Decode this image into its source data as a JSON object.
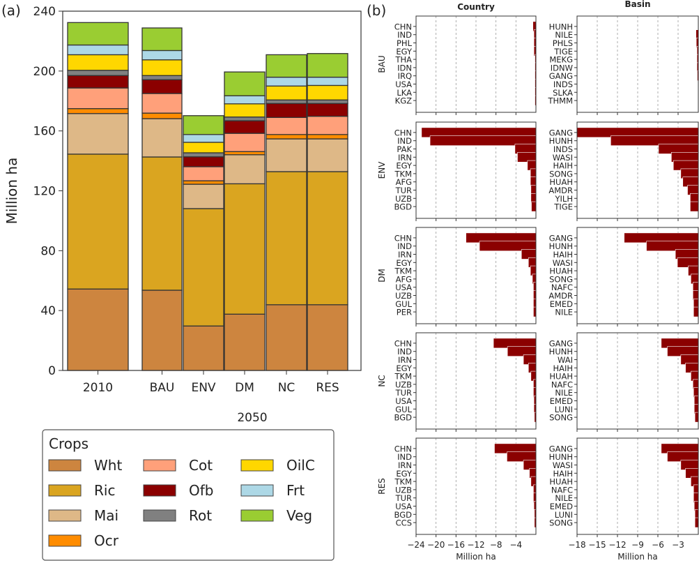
{
  "panel_labels": {
    "a": "(a)",
    "b": "(b)"
  },
  "chart_data": [
    {
      "type": "bar",
      "stacked": true,
      "id": "panel-a",
      "title": "",
      "xlabel": "2050",
      "ylabel": "Million ha",
      "ylim": [
        0,
        240
      ],
      "yticks": [
        0,
        40,
        80,
        120,
        160,
        200,
        240
      ],
      "categories": [
        "2010",
        "BAU",
        "ENV",
        "DM",
        "NC",
        "RES"
      ],
      "group_gap_after": "2010",
      "series": [
        {
          "name": "Wht",
          "color": "#CD853F",
          "values": [
            54.4,
            53.6,
            29.7,
            37.6,
            43.9,
            43.9
          ]
        },
        {
          "name": "Ric",
          "color": "#DAA520",
          "values": [
            90.1,
            89.0,
            78.4,
            87.1,
            88.9,
            88.9
          ]
        },
        {
          "name": "Mai",
          "color": "#DEB887",
          "values": [
            27.1,
            25.6,
            16.3,
            19.4,
            21.9,
            21.9
          ]
        },
        {
          "name": "Ocr",
          "color": "#FF8C00",
          "values": [
            3.3,
            3.7,
            2.3,
            2.1,
            2.9,
            2.9
          ]
        },
        {
          "name": "Cot",
          "color": "#FFA07A",
          "values": [
            13.8,
            13.1,
            9.4,
            12.2,
            11.4,
            12.2
          ]
        },
        {
          "name": "Ofb",
          "color": "#8B0000",
          "values": [
            8.3,
            9.2,
            6.6,
            8.4,
            9.3,
            8.5
          ]
        },
        {
          "name": "Rot",
          "color": "#808080",
          "values": [
            3.5,
            2.8,
            2.7,
            2.5,
            2.4,
            2.4
          ]
        },
        {
          "name": "OilC",
          "color": "#FFD700",
          "values": [
            10.4,
            10.5,
            7.0,
            8.8,
            9.3,
            9.7
          ]
        },
        {
          "name": "Frt",
          "color": "#ADD8E6",
          "values": [
            6.5,
            6.2,
            5.2,
            5.4,
            5.9,
            5.5
          ]
        },
        {
          "name": "Veg",
          "color": "#9ACD32",
          "values": [
            15.0,
            15.1,
            12.6,
            15.9,
            15.0,
            15.8
          ]
        }
      ],
      "legend": {
        "title": "Crops",
        "placement": "bottom",
        "columns": 3
      }
    },
    {
      "type": "bar",
      "orientation": "horizontal",
      "id": "panel-b",
      "bar_color": "#8B0000",
      "column_titles": [
        "Country",
        "Basin"
      ],
      "row_labels": [
        "BAU",
        "ENV",
        "DM",
        "NC",
        "RES"
      ],
      "xlabel": "Million ha",
      "axes": {
        "Country": {
          "xlim": [
            -24,
            0
          ],
          "xticks": [
            -24,
            -20,
            -16,
            -12,
            -8,
            -4
          ]
        },
        "Basin": {
          "xlim": [
            -18,
            0
          ],
          "xticks": [
            -18,
            -15,
            -12,
            -9,
            -6,
            -3
          ]
        }
      },
      "panels": [
        {
          "scenario": "BAU",
          "group": "Country",
          "labels": [
            "CHN",
            "IND",
            "PHL",
            "EGY",
            "THA",
            "IDN",
            "IRQ",
            "USA",
            "LKA",
            "KGZ"
          ],
          "values": [
            -0.6,
            -0.4,
            -0.4,
            -0.4,
            -0.2,
            -0.2,
            -0.2,
            -0.2,
            -0.2,
            -0.2
          ]
        },
        {
          "scenario": "BAU",
          "group": "Basin",
          "labels": [
            "HUNH",
            "NILE",
            "PHLS",
            "TIGE",
            "MEKG",
            "IDNW",
            "GANG",
            "INDS",
            "SLKA",
            "THMM"
          ],
          "values": [
            0,
            -0.35,
            -0.3,
            -0.2,
            -0.2,
            -0.2,
            -0.15,
            0,
            0,
            0
          ]
        },
        {
          "scenario": "ENV",
          "group": "Country",
          "labels": [
            "CHN",
            "IND",
            "PAK",
            "IRN",
            "EGY",
            "TKM",
            "AFG",
            "TUR",
            "UZB",
            "BGD"
          ],
          "values": [
            -22.9,
            -21.2,
            -4.2,
            -3.7,
            -1.7,
            -1.1,
            -1.1,
            -1.0,
            -1.0,
            -0.9
          ]
        },
        {
          "scenario": "ENV",
          "group": "Basin",
          "labels": [
            "GANG",
            "HUNH",
            "INDS",
            "WASI",
            "HAIH",
            "SONG",
            "HUAH",
            "AMDR",
            "YILH",
            "TIGE"
          ],
          "values": [
            -18.0,
            -13.0,
            -5.9,
            -4.0,
            -3.7,
            -2.6,
            -2.3,
            -1.6,
            -1.2,
            -1.2
          ]
        },
        {
          "scenario": "DM",
          "group": "Country",
          "labels": [
            "CHN",
            "IND",
            "IRN",
            "EGY",
            "TKM",
            "AFG",
            "USA",
            "UZB",
            "GUL",
            "PER"
          ],
          "values": [
            -14.0,
            -11.3,
            -2.9,
            -1.5,
            -1.1,
            -0.7,
            -0.5,
            -0.5,
            -0.5,
            -0.5
          ]
        },
        {
          "scenario": "DM",
          "group": "Basin",
          "labels": [
            "GANG",
            "HUNH",
            "HAIH",
            "WASI",
            "HUAH",
            "SONG",
            "NAFC",
            "AMDR",
            "EMED",
            "NILE"
          ],
          "values": [
            -11.0,
            -7.7,
            -3.4,
            -3.1,
            -1.5,
            -1.1,
            -0.8,
            -0.8,
            -0.7,
            -0.7
          ]
        },
        {
          "scenario": "NC",
          "group": "Country",
          "labels": [
            "CHN",
            "IND",
            "IRN",
            "EGY",
            "TKM",
            "UZB",
            "TUR",
            "USA",
            "GUL",
            "BGD"
          ],
          "values": [
            -8.5,
            -5.7,
            -2.5,
            -1.5,
            -1.0,
            -0.5,
            -0.5,
            -0.4,
            -0.4,
            -0.3
          ]
        },
        {
          "scenario": "NC",
          "group": "Basin",
          "labels": [
            "GANG",
            "HUNH",
            "WAI",
            "HAIH",
            "HUAH",
            "NAFC",
            "NILE",
            "EMED",
            "LUNI",
            "SONG"
          ],
          "values": [
            -5.5,
            -4.6,
            -2.6,
            -1.9,
            -1.1,
            -0.8,
            -0.7,
            -0.6,
            -0.6,
            -0.5
          ]
        },
        {
          "scenario": "RES",
          "group": "Country",
          "labels": [
            "CHN",
            "IND",
            "IRN",
            "EGY",
            "TKM",
            "UZB",
            "TUR",
            "USA",
            "BGD",
            "CCS"
          ],
          "values": [
            -8.3,
            -5.8,
            -2.5,
            -1.3,
            -1.0,
            -0.5,
            -0.5,
            -0.4,
            -0.3,
            -0.3
          ]
        },
        {
          "scenario": "RES",
          "group": "Basin",
          "labels": [
            "GANG",
            "HUNH",
            "WASI",
            "HAIH",
            "HUAH",
            "NAFC",
            "NILE",
            "EMED",
            "LUNI",
            "SONG"
          ],
          "values": [
            -5.5,
            -4.6,
            -2.6,
            -1.9,
            -1.1,
            -0.7,
            -0.7,
            -0.6,
            -0.5,
            -0.5
          ]
        }
      ]
    }
  ]
}
